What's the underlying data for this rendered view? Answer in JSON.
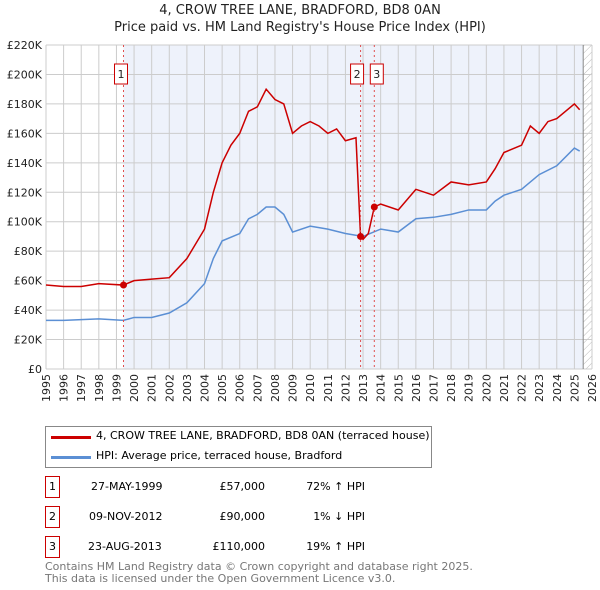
{
  "chart_data": {
    "type": "line",
    "title": "4, CROW TREE LANE, BRADFORD, BD8 0AN",
    "subtitle": "Price paid vs. HM Land Registry's House Price Index (HPI)",
    "xlim": [
      1995,
      2026
    ],
    "ylim": [
      0,
      220000
    ],
    "x_ticks": [
      "1995",
      "1996",
      "1997",
      "1998",
      "1999",
      "2000",
      "2001",
      "2002",
      "2003",
      "2004",
      "2005",
      "2006",
      "2007",
      "2008",
      "2009",
      "2010",
      "2011",
      "2012",
      "2013",
      "2014",
      "2015",
      "2016",
      "2017",
      "2018",
      "2019",
      "2020",
      "2021",
      "2022",
      "2023",
      "2024",
      "2025",
      "2026"
    ],
    "y_ticks": [
      "£0",
      "£20K",
      "£40K",
      "£60K",
      "£80K",
      "£100K",
      "£120K",
      "£140K",
      "£160K",
      "£180K",
      "£200K",
      "£220K"
    ],
    "grid": true,
    "series": [
      {
        "name": "4, CROW TREE LANE, BRADFORD, BD8 0AN (terraced house)",
        "color": "#cc0000",
        "x": [
          1995,
          1996,
          1997,
          1998,
          1999.4,
          2000,
          2001,
          2002,
          2003,
          2004,
          2004.5,
          2005,
          2005.5,
          2006,
          2006.5,
          2007,
          2007.5,
          2008,
          2008.5,
          2009,
          2009.5,
          2010,
          2010.5,
          2011,
          2011.5,
          2012,
          2012.6,
          2012.86,
          2013,
          2013.3,
          2013.64,
          2014,
          2015,
          2016,
          2017,
          2018,
          2019,
          2020,
          2020.5,
          2021,
          2022,
          2022.5,
          2023,
          2023.5,
          2024,
          2025,
          2025.3
        ],
        "y": [
          57000,
          56000,
          56000,
          58000,
          57000,
          60000,
          61000,
          62000,
          75000,
          95000,
          120000,
          140000,
          152000,
          160000,
          175000,
          178000,
          190000,
          183000,
          180000,
          160000,
          165000,
          168000,
          165000,
          160000,
          163000,
          155000,
          157000,
          90000,
          88000,
          92000,
          110000,
          112000,
          108000,
          122000,
          118000,
          127000,
          125000,
          127000,
          136000,
          147000,
          152000,
          165000,
          160000,
          168000,
          170000,
          180000,
          176000
        ]
      },
      {
        "name": "HPI: Average price, terraced house, Bradford",
        "color": "#5b8fd4",
        "x": [
          1995,
          1996,
          1997,
          1998,
          1999.4,
          2000,
          2001,
          2002,
          2003,
          2004,
          2004.5,
          2005,
          2006,
          2006.5,
          2007,
          2007.5,
          2008,
          2008.5,
          2009,
          2010,
          2010.5,
          2011,
          2012,
          2013,
          2014,
          2015,
          2016,
          2017,
          2018,
          2019,
          2020,
          2020.5,
          2021,
          2022,
          2023,
          2024,
          2025,
          2025.3
        ],
        "y": [
          33000,
          33000,
          33500,
          34000,
          33000,
          35000,
          35000,
          38000,
          45000,
          58000,
          75000,
          87000,
          92000,
          102000,
          105000,
          110000,
          110000,
          105000,
          93000,
          97000,
          96000,
          95000,
          92000,
          90000,
          95000,
          93000,
          102000,
          103000,
          105000,
          108000,
          108000,
          114000,
          118000,
          122000,
          132000,
          138000,
          150000,
          148000
        ]
      }
    ],
    "sales": [
      {
        "label": "1",
        "date": "27-MAY-1999",
        "price": "£57,000",
        "hpi": "72% ↑ HPI",
        "x": 1999.4,
        "y": 57000
      },
      {
        "label": "2",
        "date": "09-NOV-2012",
        "price": "£90,000",
        "hpi": "1% ↓ HPI",
        "x": 2012.86,
        "y": 90000
      },
      {
        "label": "3",
        "date": "23-AUG-2013",
        "price": "£110,000",
        "hpi": "19% ↑ HPI",
        "x": 2013.64,
        "y": 110000
      }
    ]
  },
  "footer": {
    "line1": "Contains HM Land Registry data © Crown copyright and database right 2025.",
    "line2": "This data is licensed under the Open Government Licence v3.0."
  }
}
